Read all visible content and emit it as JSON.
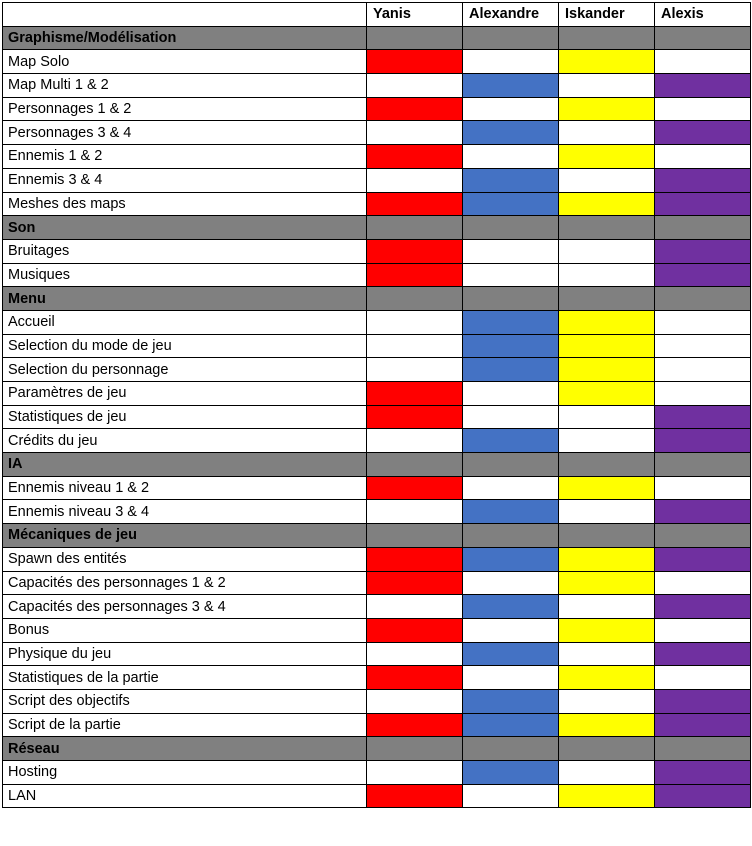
{
  "colors": {
    "Yanis": "#ff0000",
    "Alexandre": "#4472c4",
    "Iskander": "#ffff00",
    "Alexis": "#7030a0",
    "section_bg": "#808080"
  },
  "headers": [
    "",
    "Yanis",
    "Alexandre",
    "Iskander",
    "Alexis"
  ],
  "members": [
    "Yanis",
    "Alexandre",
    "Iskander",
    "Alexis"
  ],
  "rows": [
    {
      "type": "section",
      "label": "Graphisme/Modélisation"
    },
    {
      "type": "task",
      "label": "Map Solo",
      "assigned": [
        "Yanis",
        "Iskander"
      ]
    },
    {
      "type": "task",
      "label": "Map Multi 1 & 2",
      "assigned": [
        "Alexandre",
        "Alexis"
      ]
    },
    {
      "type": "task",
      "label": "Personnages 1 & 2",
      "assigned": [
        "Yanis",
        "Iskander"
      ]
    },
    {
      "type": "task",
      "label": "Personnages 3 & 4",
      "assigned": [
        "Alexandre",
        "Alexis"
      ]
    },
    {
      "type": "task",
      "label": "Ennemis 1 & 2",
      "assigned": [
        "Yanis",
        "Iskander"
      ]
    },
    {
      "type": "task",
      "label": "Ennemis 3 & 4",
      "assigned": [
        "Alexandre",
        "Alexis"
      ]
    },
    {
      "type": "task",
      "label": "Meshes des maps",
      "assigned": [
        "Yanis",
        "Alexandre",
        "Iskander",
        "Alexis"
      ]
    },
    {
      "type": "section",
      "label": "Son"
    },
    {
      "type": "task",
      "label": "Bruitages",
      "assigned": [
        "Yanis",
        "Alexis"
      ]
    },
    {
      "type": "task",
      "label": "Musiques",
      "assigned": [
        "Yanis",
        "Alexis"
      ]
    },
    {
      "type": "section",
      "label": "Menu"
    },
    {
      "type": "task",
      "label": "Accueil",
      "assigned": [
        "Alexandre",
        "Iskander"
      ]
    },
    {
      "type": "task",
      "label": "Selection du mode de jeu",
      "assigned": [
        "Alexandre",
        "Iskander"
      ]
    },
    {
      "type": "task",
      "label": "Selection du personnage",
      "assigned": [
        "Alexandre",
        "Iskander"
      ]
    },
    {
      "type": "task",
      "label": "Paramètres de jeu",
      "assigned": [
        "Yanis",
        "Iskander"
      ]
    },
    {
      "type": "task",
      "label": "Statistiques de jeu",
      "assigned": [
        "Yanis",
        "Alexis"
      ]
    },
    {
      "type": "task",
      "label": "Crédits du jeu",
      "assigned": [
        "Alexandre",
        "Alexis"
      ]
    },
    {
      "type": "section",
      "label": "IA"
    },
    {
      "type": "task",
      "label": "Ennemis niveau 1 & 2",
      "assigned": [
        "Yanis",
        "Iskander"
      ]
    },
    {
      "type": "task",
      "label": "Ennemis niveau 3 & 4",
      "assigned": [
        "Alexandre",
        "Alexis"
      ]
    },
    {
      "type": "section",
      "label": "Mécaniques de jeu"
    },
    {
      "type": "task",
      "label": "Spawn des entités",
      "assigned": [
        "Yanis",
        "Alexandre",
        "Iskander",
        "Alexis"
      ]
    },
    {
      "type": "task",
      "label": "Capacités des personnages 1 & 2",
      "assigned": [
        "Yanis",
        "Iskander"
      ]
    },
    {
      "type": "task",
      "label": "Capacités des personnages 3 & 4",
      "assigned": [
        "Alexandre",
        "Alexis"
      ]
    },
    {
      "type": "task",
      "label": "Bonus",
      "assigned": [
        "Yanis",
        "Iskander"
      ]
    },
    {
      "type": "task",
      "label": "Physique du jeu",
      "assigned": [
        "Alexandre",
        "Alexis"
      ]
    },
    {
      "type": "task",
      "label": "Statistiques de la partie",
      "assigned": [
        "Yanis",
        "Iskander"
      ]
    },
    {
      "type": "task",
      "label": "Script des objectifs",
      "assigned": [
        "Alexandre",
        "Alexis"
      ]
    },
    {
      "type": "task",
      "label": "Script de la partie",
      "assigned": [
        "Yanis",
        "Alexandre",
        "Iskander",
        "Alexis"
      ]
    },
    {
      "type": "section",
      "label": "Réseau"
    },
    {
      "type": "task",
      "label": "Hosting",
      "assigned": [
        "Alexandre",
        "Alexis"
      ]
    },
    {
      "type": "task",
      "label": "LAN",
      "assigned": [
        "Yanis",
        "Iskander",
        "Alexis"
      ]
    }
  ]
}
